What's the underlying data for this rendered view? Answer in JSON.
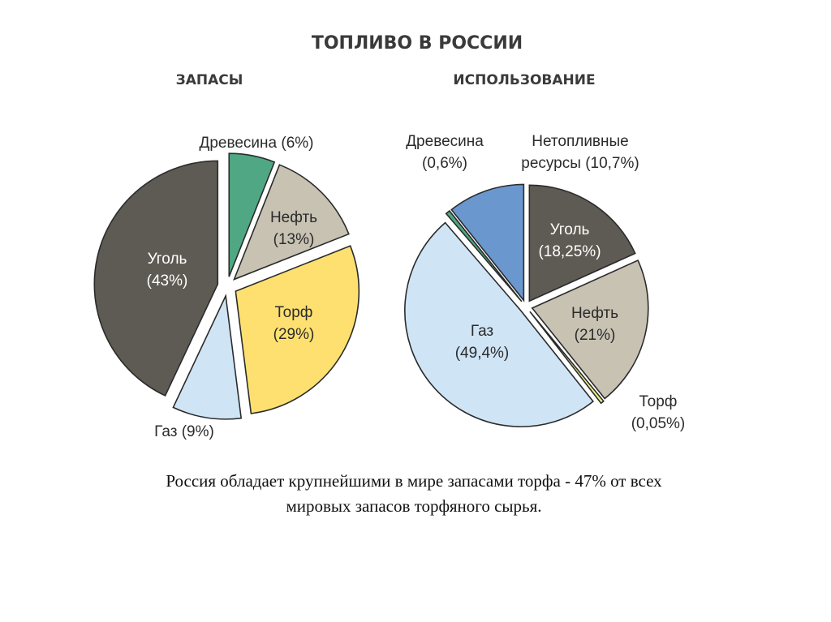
{
  "title": "ТОПЛИВО В РОССИИ",
  "caption": {
    "line1": "Россия обладает крупнейшими в мире запасами торфа - 47% от всех",
    "line2": "мировых запасов торфяного сырья."
  },
  "chart_data": [
    {
      "type": "pie",
      "title": "ЗАПАСЫ",
      "slices": [
        {
          "name": "Древесина",
          "label_lines": [
            "Древесина (6%)"
          ],
          "value": 6,
          "color": "#4fa883"
        },
        {
          "name": "Нефть",
          "label_lines": [
            "Нефть",
            "(13%)"
          ],
          "value": 13,
          "color": "#c7c2b2"
        },
        {
          "name": "Торф",
          "label_lines": [
            "Торф",
            "(29%)"
          ],
          "value": 29,
          "color": "#fde070"
        },
        {
          "name": "Газ",
          "label_lines": [
            "Газ (9%)"
          ],
          "value": 9,
          "color": "#cfe5f6"
        },
        {
          "name": "Уголь",
          "label_lines": [
            "Уголь",
            "(43%)"
          ],
          "value": 43,
          "color": "#5e5b54"
        }
      ]
    },
    {
      "type": "pie",
      "title": "ИСПОЛЬЗОВАНИЕ",
      "slices": [
        {
          "name": "Уголь",
          "label_lines": [
            "Уголь",
            "(18,25%)"
          ],
          "value": 18.25,
          "color": "#5e5b54"
        },
        {
          "name": "Нефть",
          "label_lines": [
            "Нефть",
            "(21%)"
          ],
          "value": 21,
          "color": "#c7c2b2"
        },
        {
          "name": "Торф",
          "label_lines": [
            "Торф",
            "(0,05%)"
          ],
          "value": 0.05,
          "color": "#eef08a"
        },
        {
          "name": "Газ",
          "label_lines": [
            "Газ",
            "(49,4%)"
          ],
          "value": 49.4,
          "color": "#cfe5f6"
        },
        {
          "name": "Древесина",
          "label_lines": [
            "Древесина",
            "(0,6%)"
          ],
          "value": 0.6,
          "color": "#4fa883"
        },
        {
          "name": "Нетопливные ресурсы",
          "label_lines": [
            "Нетопливные",
            "ресурсы (10,7%)"
          ],
          "value": 10.7,
          "color": "#6b97cf"
        }
      ]
    }
  ]
}
